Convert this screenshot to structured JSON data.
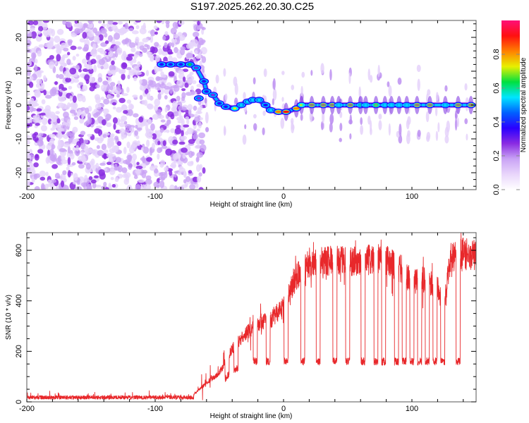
{
  "title": "S197.2025.262.20.30.C25",
  "chart_data": [
    {
      "type": "heatmap",
      "name": "spectrogram",
      "xlabel": "Height of straight line (km)",
      "ylabel": "Frequency (Hz)",
      "xlim": [
        -200,
        150
      ],
      "ylim": [
        -25,
        25
      ],
      "x_ticks": [
        -200,
        -100,
        0,
        100
      ],
      "x_tick_labels": [
        "-200",
        "-100",
        "0",
        "100"
      ],
      "y_ticks": [
        -20,
        -10,
        0,
        10,
        20
      ],
      "y_tick_labels": [
        "-20",
        "-10",
        "0",
        "10",
        "20"
      ],
      "colorbar": {
        "label": "Normalized spectral amplitude",
        "range": [
          0,
          1
        ],
        "ticks": [
          0.0,
          0.2,
          0.4,
          0.6,
          0.8
        ],
        "tick_labels": [
          "0.0",
          "0.2",
          "0.4",
          "0.6",
          "0.8"
        ],
        "colormap": [
          "#ffffff",
          "#e9d6fb",
          "#c9a3f5",
          "#8a2be2",
          "#2a00ff",
          "#0060ff",
          "#00e5ff",
          "#00e040",
          "#e8f000",
          "#ff8000",
          "#ff1010",
          "#ff1078"
        ]
      },
      "noise_region_x": [
        -200,
        -70
      ],
      "ridge": {
        "description": "Doppler frequency of the signal versus height",
        "points": [
          {
            "x": -95,
            "freq": 12,
            "amp": 0.35
          },
          {
            "x": -88,
            "freq": 12,
            "amp": 0.35
          },
          {
            "x": -80,
            "freq": 12,
            "amp": 0.4
          },
          {
            "x": -73,
            "freq": 12,
            "amp": 0.6
          },
          {
            "x": -68,
            "freq": 11,
            "amp": 0.3
          },
          {
            "x": -62,
            "freq": 7,
            "amp": 0.35
          },
          {
            "x": -60,
            "freq": 4,
            "amp": 0.35
          },
          {
            "x": -66,
            "freq": 2,
            "amp": 0.3
          },
          {
            "x": -55,
            "freq": 3,
            "amp": 0.3
          },
          {
            "x": -50,
            "freq": 0.5,
            "amp": 0.4
          },
          {
            "x": -45,
            "freq": -0.5,
            "amp": 0.4
          },
          {
            "x": -38,
            "freq": -1,
            "amp": 0.7
          },
          {
            "x": -33,
            "freq": 0,
            "amp": 0.5
          },
          {
            "x": -28,
            "freq": 1,
            "amp": 0.5
          },
          {
            "x": -24,
            "freq": 1.5,
            "amp": 0.55
          },
          {
            "x": -19,
            "freq": 1.5,
            "amp": 0.5
          },
          {
            "x": -14,
            "freq": 0,
            "amp": 0.4
          },
          {
            "x": -10,
            "freq": -1.5,
            "amp": 0.55
          },
          {
            "x": -4,
            "freq": -2,
            "amp": 0.85
          },
          {
            "x": 2,
            "freq": -2,
            "amp": 0.9
          },
          {
            "x": 10,
            "freq": -1,
            "amp": 0.85
          },
          {
            "x": 14,
            "freq": 0,
            "amp": 0.7
          },
          {
            "x": 22,
            "freq": 0,
            "amp": 0.9
          },
          {
            "x": 31,
            "freq": 0,
            "amp": 0.9
          },
          {
            "x": 38,
            "freq": 0,
            "amp": 0.9
          },
          {
            "x": 43,
            "freq": 0,
            "amp": 0.55
          },
          {
            "x": 52,
            "freq": 0,
            "amp": 0.92
          },
          {
            "x": 60,
            "freq": 0,
            "amp": 0.6
          },
          {
            "x": 64,
            "freq": 0,
            "amp": 0.55
          },
          {
            "x": 72,
            "freq": 0,
            "amp": 0.8
          },
          {
            "x": 79,
            "freq": 0,
            "amp": 0.55
          },
          {
            "x": 84,
            "freq": 0,
            "amp": 0.55
          },
          {
            "x": 90,
            "freq": 0,
            "amp": 0.55
          },
          {
            "x": 96,
            "freq": 0,
            "amp": 0.55
          },
          {
            "x": 104,
            "freq": 0,
            "amp": 0.9
          },
          {
            "x": 114,
            "freq": 0,
            "amp": 0.9
          },
          {
            "x": 126,
            "freq": 0,
            "amp": 0.55
          },
          {
            "x": 136,
            "freq": 0,
            "amp": 0.9
          },
          {
            "x": 146,
            "freq": 0,
            "amp": 0.9
          }
        ]
      }
    },
    {
      "type": "line",
      "name": "snr",
      "xlabel": "Height of straight line (km)",
      "ylabel": "SNR (10 * v/v)",
      "xlim": [
        -200,
        150
      ],
      "ylim": [
        0,
        670
      ],
      "x_ticks": [
        -200,
        -100,
        0,
        100
      ],
      "x_tick_labels": [
        "-200",
        "-100",
        "0",
        "100"
      ],
      "y_ticks": [
        0,
        200,
        400,
        600
      ],
      "y_tick_labels": [
        "0",
        "200",
        "400",
        "600"
      ],
      "color": "#e8282b",
      "envelope": {
        "description": "Approximate upper level of SNR versus height (km)",
        "x": [
          -200,
          -150,
          -100,
          -70,
          -60,
          -50,
          -40,
          -30,
          -20,
          -10,
          0,
          10,
          20,
          30,
          40,
          50,
          60,
          70,
          80,
          90,
          100,
          110,
          120,
          125,
          130,
          140,
          150
        ],
        "high": [
          20,
          20,
          22,
          30,
          80,
          120,
          220,
          280,
          330,
          340,
          400,
          520,
          580,
          585,
          590,
          590,
          580,
          600,
          590,
          560,
          500,
          510,
          480,
          400,
          600,
          620,
          610
        ]
      },
      "dropouts": {
        "description": "Approximate heights (km) of drops to low SNR level",
        "low_level": 160,
        "x": [
          -44,
          -37,
          -22,
          -12,
          2,
          15,
          27,
          40,
          50,
          62,
          72,
          78,
          88,
          94,
          100,
          106,
          112,
          118,
          124,
          136
        ]
      }
    }
  ]
}
